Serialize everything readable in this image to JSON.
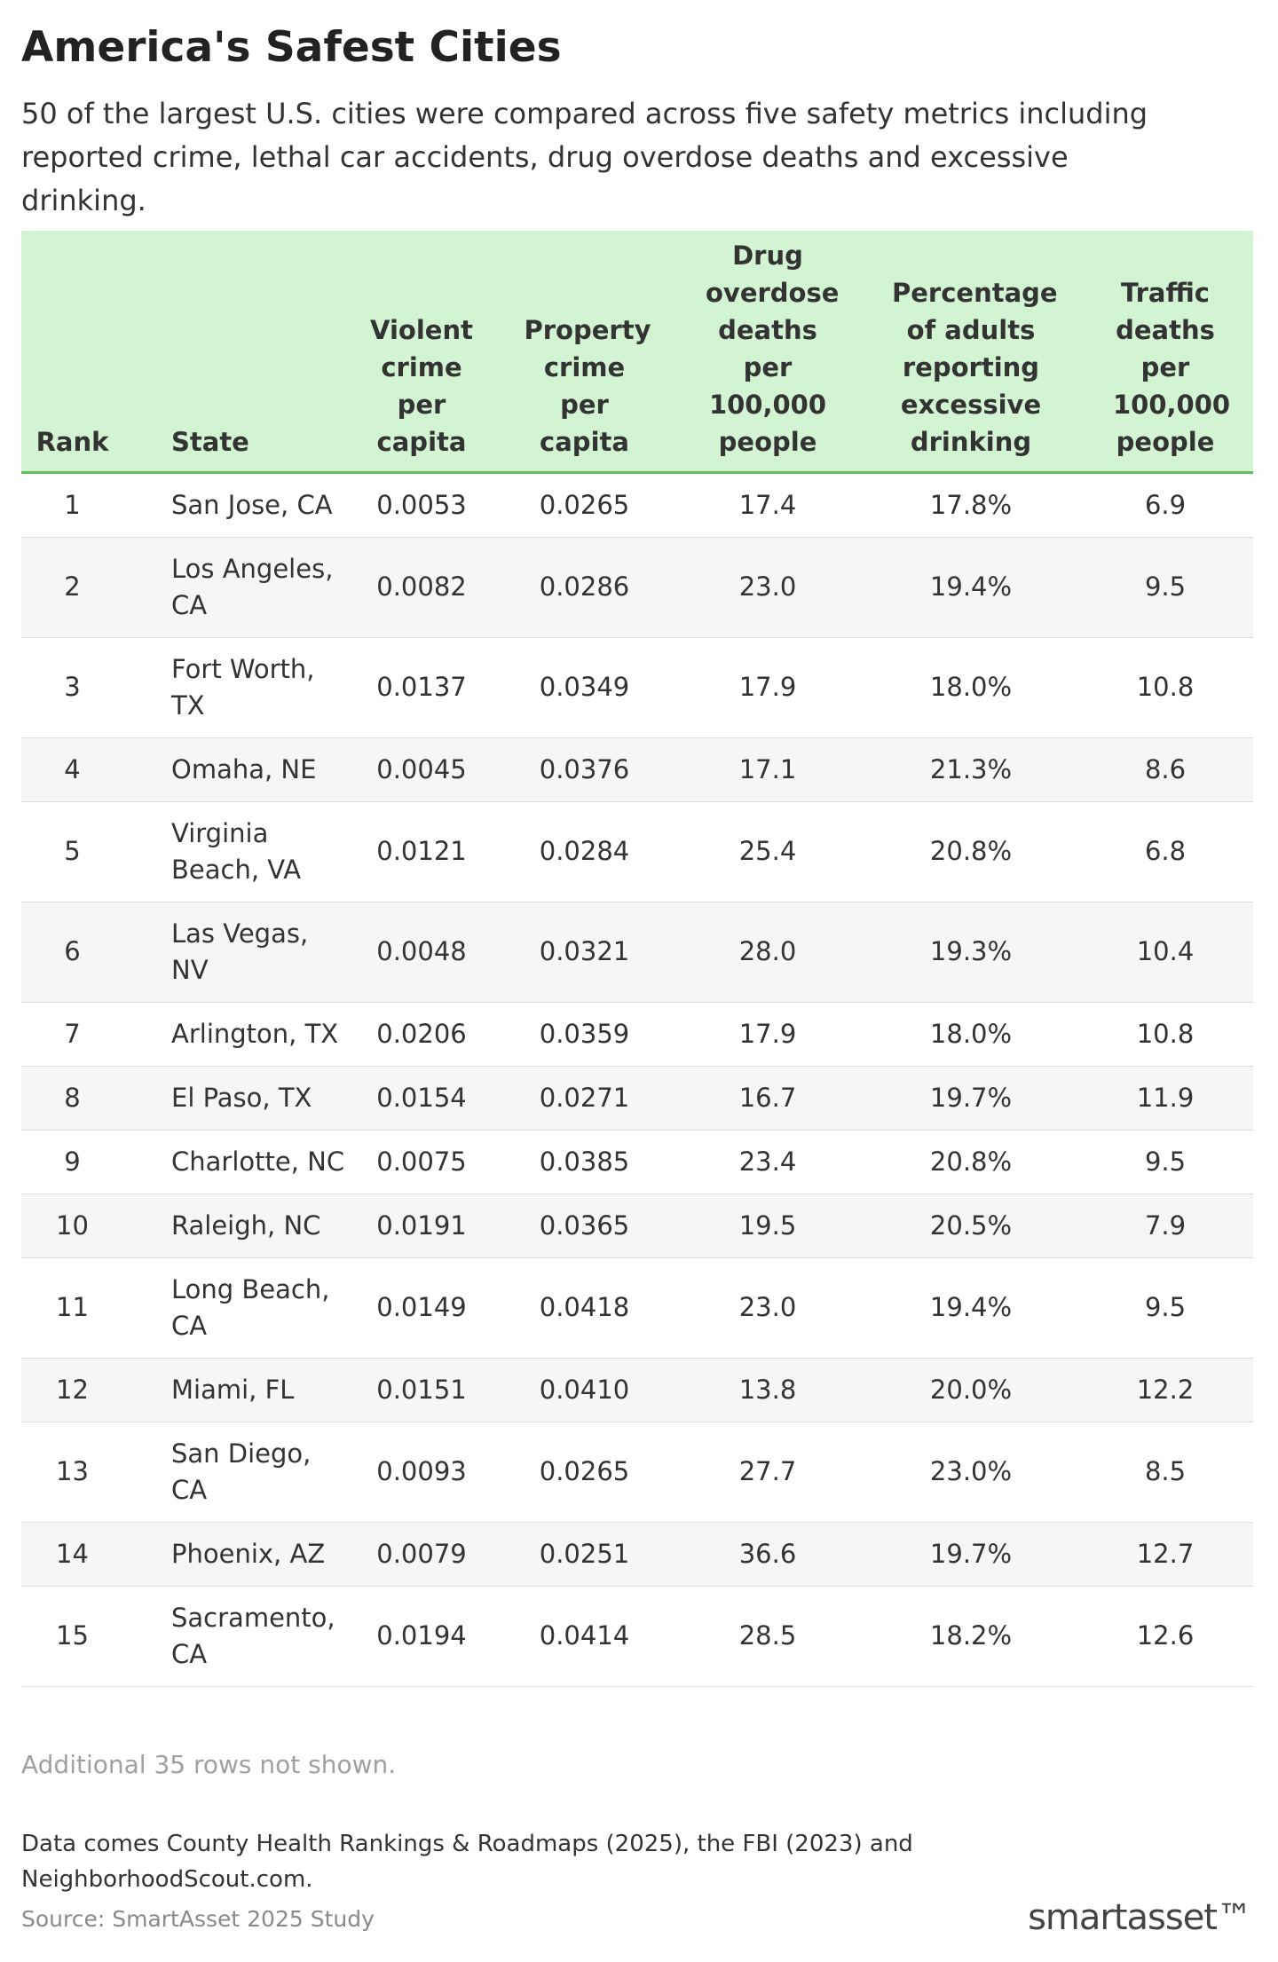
{
  "header": {
    "title": "America's Safest Cities",
    "subtitle": "50 of the largest U.S. cities were compared across five safety metrics including reported crime, lethal car accidents, drug overdose deaths and excessive drinking."
  },
  "table": {
    "columns": [
      "Rank",
      "State",
      "Violent crime per capita",
      "Property crime per capita",
      "Drug overdose deaths per 100,000 people",
      "Percentage of adults reporting excessive drinking",
      "Traffic deaths per 100,000 people"
    ],
    "rows": [
      [
        "1",
        "San Jose, CA",
        "0.0053",
        "0.0265",
        "17.4",
        "17.8%",
        "6.9"
      ],
      [
        "2",
        "Los Angeles, CA",
        "0.0082",
        "0.0286",
        "23.0",
        "19.4%",
        "9.5"
      ],
      [
        "3",
        "Fort Worth, TX",
        "0.0137",
        "0.0349",
        "17.9",
        "18.0%",
        "10.8"
      ],
      [
        "4",
        "Omaha, NE",
        "0.0045",
        "0.0376",
        "17.1",
        "21.3%",
        "8.6"
      ],
      [
        "5",
        "Virginia Beach, VA",
        "0.0121",
        "0.0284",
        "25.4",
        "20.8%",
        "6.8"
      ],
      [
        "6",
        "Las Vegas, NV",
        "0.0048",
        "0.0321",
        "28.0",
        "19.3%",
        "10.4"
      ],
      [
        "7",
        "Arlington, TX",
        "0.0206",
        "0.0359",
        "17.9",
        "18.0%",
        "10.8"
      ],
      [
        "8",
        "El Paso, TX",
        "0.0154",
        "0.0271",
        "16.7",
        "19.7%",
        "11.9"
      ],
      [
        "9",
        "Charlotte, NC",
        "0.0075",
        "0.0385",
        "23.4",
        "20.8%",
        "9.5"
      ],
      [
        "10",
        "Raleigh, NC",
        "0.0191",
        "0.0365",
        "19.5",
        "20.5%",
        "7.9"
      ],
      [
        "11",
        "Long Beach, CA",
        "0.0149",
        "0.0418",
        "23.0",
        "19.4%",
        "9.5"
      ],
      [
        "12",
        "Miami, FL",
        "0.0151",
        "0.0410",
        "13.8",
        "20.0%",
        "12.2"
      ],
      [
        "13",
        "San Diego, CA",
        "0.0093",
        "0.0265",
        "27.7",
        "23.0%",
        "8.5"
      ],
      [
        "14",
        "Phoenix, AZ",
        "0.0079",
        "0.0251",
        "36.6",
        "19.7%",
        "12.7"
      ],
      [
        "15",
        "Sacramento, CA",
        "0.0194",
        "0.0414",
        "28.5",
        "18.2%",
        "12.6"
      ]
    ]
  },
  "notes": {
    "more": "Additional 35 rows not shown."
  },
  "footer": {
    "notes": "Data comes County Health Rankings & Roadmaps (2025), the FBI (2023) and NeighborhoodScout.com.",
    "source": "Source: SmartAsset 2025 Study",
    "logo": "smartasset™"
  }
}
